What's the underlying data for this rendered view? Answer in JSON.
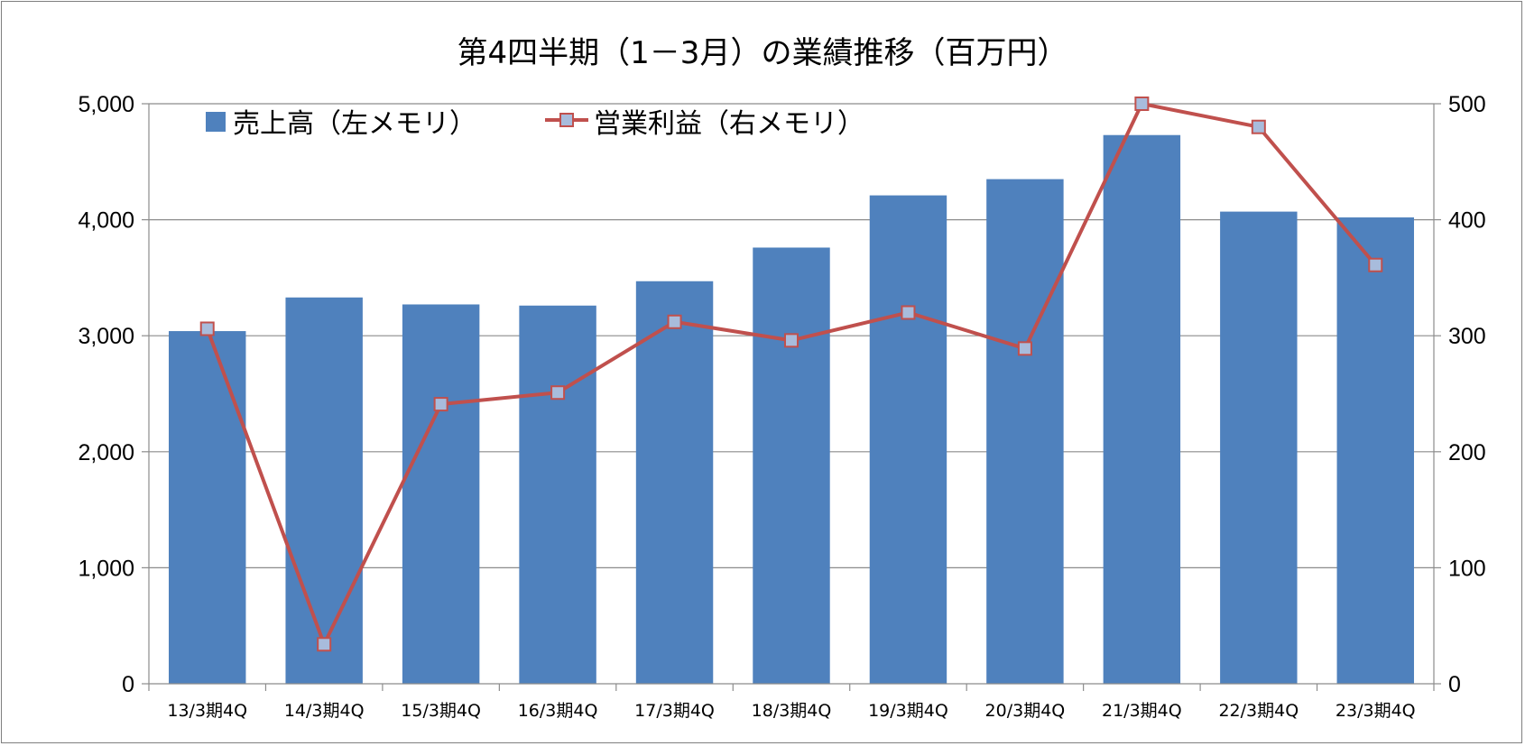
{
  "chart_data": {
    "type": "bar",
    "title": "第4四半期（1－3月）の業績推移（百万円）",
    "categories": [
      "13/3期4Q",
      "14/3期4Q",
      "15/3期4Q",
      "16/3期4Q",
      "17/3期4Q",
      "18/3期4Q",
      "19/3期4Q",
      "20/3期4Q",
      "21/3期4Q",
      "22/3期4Q",
      "23/3期4Q"
    ],
    "series": [
      {
        "name": "売上高（左メモリ）",
        "type": "bar",
        "axis": "left",
        "color": "#4F81BD",
        "values": [
          3040,
          3330,
          3270,
          3260,
          3470,
          3760,
          4210,
          4350,
          4730,
          4070,
          4020
        ]
      },
      {
        "name": "営業利益（右メモリ）",
        "type": "line",
        "axis": "right",
        "color": "#C0504D",
        "marker_fill": "#A8BCDC",
        "values": [
          306,
          34,
          241,
          251,
          312,
          296,
          320,
          289,
          500,
          480,
          361
        ]
      }
    ],
    "y_left": {
      "ylim": [
        0,
        5000
      ],
      "ticks": [
        "0",
        "1,000",
        "2,000",
        "3,000",
        "4,000",
        "5,000"
      ]
    },
    "y_right": {
      "ylim": [
        0,
        500
      ],
      "ticks": [
        "0",
        "100",
        "200",
        "300",
        "400",
        "500"
      ]
    },
    "grid": true,
    "legend_position": "top-left"
  }
}
